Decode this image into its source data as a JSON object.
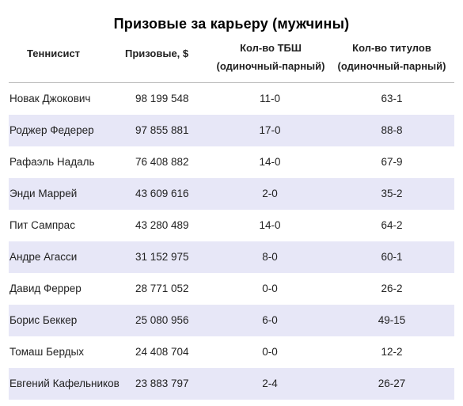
{
  "title": "Призовые за карьеру (мужчины)",
  "columns": {
    "player": "Теннисист",
    "prize": "Призовые, $",
    "grand_slams": [
      "Кол-во ТБШ",
      "(одиночный-парный)"
    ],
    "titles": [
      "Кол-во титулов",
      "(одиночный-парный)"
    ]
  },
  "rows": [
    {
      "name": "Новак Джокович",
      "prize": "98 199 548",
      "gs": "11-0",
      "titles": "63-1"
    },
    {
      "name": "Роджер Федерер",
      "prize": "97 855 881",
      "gs": "17-0",
      "titles": "88-8"
    },
    {
      "name": "Рафаэль Надаль",
      "prize": "76 408 882",
      "gs": "14-0",
      "titles": "67-9"
    },
    {
      "name": "Энди Маррей",
      "prize": "43 609 616",
      "gs": "2-0",
      "titles": "35-2"
    },
    {
      "name": "Пит Сампрас",
      "prize": "43 280 489",
      "gs": "14-0",
      "titles": "64-2"
    },
    {
      "name": "Андре Агасси",
      "prize": "31 152 975",
      "gs": "8-0",
      "titles": "60-1"
    },
    {
      "name": "Давид Феррер",
      "prize": "28 771 052",
      "gs": "0-0",
      "titles": "26-2"
    },
    {
      "name": "Борис Беккер",
      "prize": "25 080 956",
      "gs": "6-0",
      "titles": "49-15"
    },
    {
      "name": "Томаш Бердых",
      "prize": "24 408 704",
      "gs": "0-0",
      "titles": "12-2"
    },
    {
      "name": "Евгений Кафельников",
      "prize": "23 883 797",
      "gs": "2-4",
      "titles": "26-27"
    }
  ],
  "colors": {
    "row_alt_bg": "#e7e7f7",
    "header_rule": "#b8b8b8"
  }
}
